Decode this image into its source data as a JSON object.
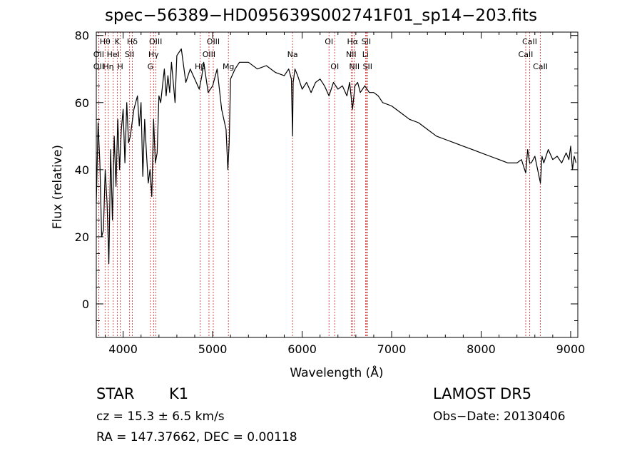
{
  "header": {
    "title": "spec−56389−HD095639S002741F01_sp14−203.fits"
  },
  "info": {
    "class_label": "STAR",
    "subclass": "K1",
    "survey": "LAMOST  DR5",
    "redshift": "cz = 15.3 ± 6.5 km/s",
    "obs_date": "Obs−Date: 20130406",
    "coords": "RA = 147.37662, DEC =    0.00118"
  },
  "chart_data": {
    "type": "line",
    "xlabel": "Wavelength (Å)",
    "ylabel": "Flux (relative)",
    "xlim": [
      3700,
      9080
    ],
    "ylim": [
      -10,
      81
    ],
    "xticks": [
      4000,
      5000,
      6000,
      7000,
      8000,
      9000
    ],
    "yticks": [
      0,
      20,
      40,
      60,
      80
    ],
    "grid": false,
    "line_color": "#000000",
    "marker_color": "#cc2222",
    "spectrum": {
      "x": [
        3700,
        3720,
        3740,
        3760,
        3780,
        3800,
        3820,
        3840,
        3860,
        3880,
        3900,
        3920,
        3940,
        3960,
        3980,
        4000,
        4020,
        4040,
        4060,
        4080,
        4100,
        4120,
        4140,
        4160,
        4180,
        4200,
        4220,
        4240,
        4260,
        4280,
        4300,
        4320,
        4340,
        4360,
        4380,
        4400,
        4420,
        4440,
        4460,
        4480,
        4500,
        4520,
        4540,
        4560,
        4580,
        4600,
        4650,
        4700,
        4750,
        4800,
        4850,
        4880,
        4900,
        4950,
        5000,
        5050,
        5100,
        5150,
        5170,
        5185,
        5200,
        5250,
        5300,
        5400,
        5500,
        5600,
        5700,
        5800,
        5850,
        5880,
        5893,
        5900,
        5920,
        5950,
        6000,
        6050,
        6100,
        6150,
        6200,
        6250,
        6300,
        6350,
        6400,
        6450,
        6500,
        6530,
        6563,
        6590,
        6620,
        6650,
        6700,
        6750,
        6800,
        6850,
        6900,
        7000,
        7100,
        7200,
        7300,
        7400,
        7500,
        7600,
        7700,
        7800,
        7900,
        8000,
        8100,
        8200,
        8300,
        8400,
        8450,
        8498,
        8520,
        8542,
        8560,
        8600,
        8662,
        8680,
        8700,
        8750,
        8800,
        8850,
        8900,
        8950,
        8980,
        9000,
        9020,
        9040,
        9060
      ],
      "y": [
        30,
        54,
        42,
        20,
        22,
        40,
        30,
        12,
        46,
        25,
        50,
        35,
        55,
        40,
        52,
        58,
        42,
        60,
        48,
        50,
        54,
        58,
        60,
        62,
        53,
        60,
        38,
        55,
        45,
        36,
        40,
        32,
        55,
        42,
        45,
        62,
        60,
        65,
        70,
        62,
        68,
        63,
        72,
        66,
        60,
        74,
        76,
        66,
        70,
        67,
        64,
        68,
        72,
        63,
        65,
        70,
        58,
        52,
        40,
        48,
        67,
        70,
        72,
        72,
        70,
        71,
        69,
        68,
        70,
        67,
        50,
        66,
        70,
        68,
        64,
        66,
        63,
        66,
        67,
        65,
        62,
        66,
        64,
        65,
        62,
        66,
        58,
        65,
        66,
        63,
        65,
        63,
        63,
        62,
        60,
        59,
        57,
        55,
        54,
        52,
        50,
        49,
        48,
        47,
        46,
        45,
        44,
        43,
        42,
        42,
        43,
        39,
        46,
        42,
        42,
        44,
        36,
        44,
        42,
        46,
        43,
        44,
        42,
        45,
        43,
        47,
        40,
        44,
        42
      ]
    },
    "lines": [
      {
        "label": "Hθ",
        "x": 3798,
        "row": 0
      },
      {
        "label": "OII",
        "x": 3727,
        "row": 1
      },
      {
        "label": "OII",
        "x": 3727,
        "row": 2
      },
      {
        "label": "K",
        "x": 3934,
        "row": 0
      },
      {
        "label": "HeI",
        "x": 3889,
        "row": 1
      },
      {
        "label": "Hη",
        "x": 3835,
        "row": 2
      },
      {
        "label": "H",
        "x": 3968,
        "row": 2
      },
      {
        "label": "Hδ",
        "x": 4102,
        "row": 0
      },
      {
        "label": "SII",
        "x": 4072,
        "row": 1
      },
      {
        "label": "OIII",
        "x": 4363,
        "row": 0
      },
      {
        "label": "Hγ",
        "x": 4340,
        "row": 1
      },
      {
        "label": "G",
        "x": 4305,
        "row": 2
      },
      {
        "label": "OIII",
        "x": 5007,
        "row": 0
      },
      {
        "label": "OIII",
        "x": 4959,
        "row": 1
      },
      {
        "label": "Hβ",
        "x": 4861,
        "row": 2
      },
      {
        "label": "Mg",
        "x": 5176,
        "row": 2
      },
      {
        "label": "Na",
        "x": 5893,
        "row": 1
      },
      {
        "label": "OI",
        "x": 6300,
        "row": 0
      },
      {
        "label": "OI",
        "x": 6364,
        "row": 2
      },
      {
        "label": "Hα",
        "x": 6563,
        "row": 0
      },
      {
        "label": "SII",
        "x": 6716,
        "row": 0
      },
      {
        "label": "NII",
        "x": 6548,
        "row": 1
      },
      {
        "label": "Li",
        "x": 6708,
        "row": 1
      },
      {
        "label": "NII",
        "x": 6583,
        "row": 2
      },
      {
        "label": "SII",
        "x": 6731,
        "row": 2
      },
      {
        "label": "CaII",
        "x": 8542,
        "row": 0
      },
      {
        "label": "CaII",
        "x": 8498,
        "row": 1
      },
      {
        "label": "CaII",
        "x": 8662,
        "row": 2
      }
    ]
  }
}
